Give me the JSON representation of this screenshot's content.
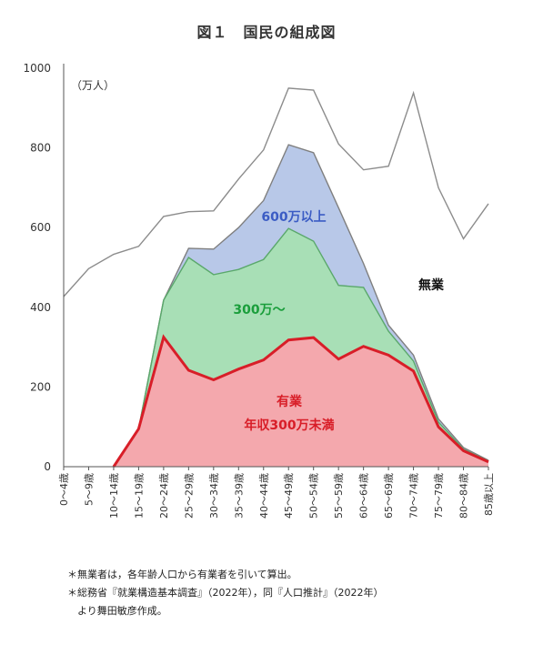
{
  "title": "図１　国民の組成図",
  "chart_data": {
    "type": "area",
    "unit_label": "（万人）",
    "yticks": [
      0,
      200,
      400,
      600,
      800,
      1000
    ],
    "ylim": [
      0,
      1000
    ],
    "categories": [
      "0～4歳",
      "5～9歳",
      "10～14歳",
      "15～19歳",
      "20～24歳",
      "25～29歳",
      "30～34歳",
      "35～39歳",
      "40～44歳",
      "45～49歳",
      "50～54歳",
      "55～59歳",
      "60～64歳",
      "65～69歳",
      "70～74歳",
      "75～79歳",
      "80～84歳",
      "85歳以上"
    ],
    "series": [
      {
        "name": "有業\n年収300万未満",
        "color": "#f4a8ad",
        "edge": "#d81e28",
        "values": [
          null,
          null,
          0,
          95,
          325,
          242,
          218,
          245,
          268,
          318,
          324,
          270,
          302,
          280,
          240,
          100,
          40,
          12
        ]
      },
      {
        "name": "300万～",
        "color": "#a8dfb6",
        "edge": "#5aa86b",
        "values": [
          null,
          null,
          0,
          95,
          418,
          525,
          482,
          495,
          520,
          598,
          566,
          455,
          450,
          340,
          265,
          112,
          44,
          14
        ]
      },
      {
        "name": "600万以上",
        "color": "#b8c8e8",
        "edge": "#7f7f7f",
        "values": [
          null,
          null,
          0,
          95,
          418,
          548,
          546,
          600,
          668,
          808,
          788,
          650,
          510,
          355,
          280,
          120,
          48,
          16
        ]
      },
      {
        "name": "無業",
        "color": "#ffffff",
        "edge": "#8c8c8c",
        "values": [
          427,
          497,
          533,
          553,
          628,
          640,
          642,
          722,
          795,
          950,
          945,
          810,
          745,
          754,
          938,
          700,
          572,
          660
        ]
      }
    ],
    "label_colors": {
      "600万以上": "#3b5cc4",
      "300万～": "#1a9e3b",
      "有業": "#d81e28",
      "無業": "#111111"
    }
  },
  "notes": [
    "＊無業者は，各年齢人口から有業者を引いて算出。",
    "＊総務省『就業構造基本調査』（2022年），同『人口推計』（2022年）",
    "　より舞田敏彦作成。"
  ]
}
